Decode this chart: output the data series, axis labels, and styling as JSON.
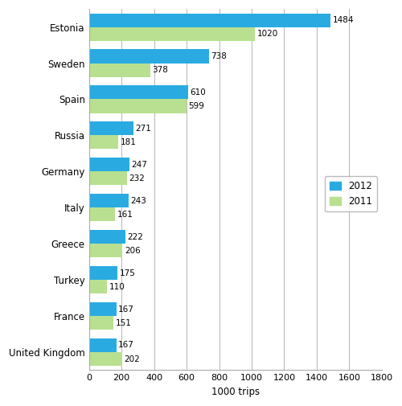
{
  "countries": [
    "Estonia",
    "Sweden",
    "Spain",
    "Russia",
    "Germany",
    "Italy",
    "Greece",
    "Turkey",
    "France",
    "United Kingdom"
  ],
  "values_2012": [
    1484,
    738,
    610,
    271,
    247,
    243,
    222,
    175,
    167,
    167
  ],
  "values_2011": [
    1020,
    378,
    599,
    181,
    232,
    161,
    206,
    110,
    151,
    202
  ],
  "color_2012": "#29abe2",
  "color_2011": "#b8e090",
  "xlim": [
    0,
    1800
  ],
  "xticks": [
    0,
    200,
    400,
    600,
    800,
    1000,
    1200,
    1400,
    1600,
    1800
  ],
  "xlabel": "1000 trips",
  "legend_labels": [
    "2012",
    "2011"
  ],
  "bar_height": 0.38,
  "label_fontsize": 7.5,
  "axis_fontsize": 8.5,
  "tick_fontsize": 8
}
